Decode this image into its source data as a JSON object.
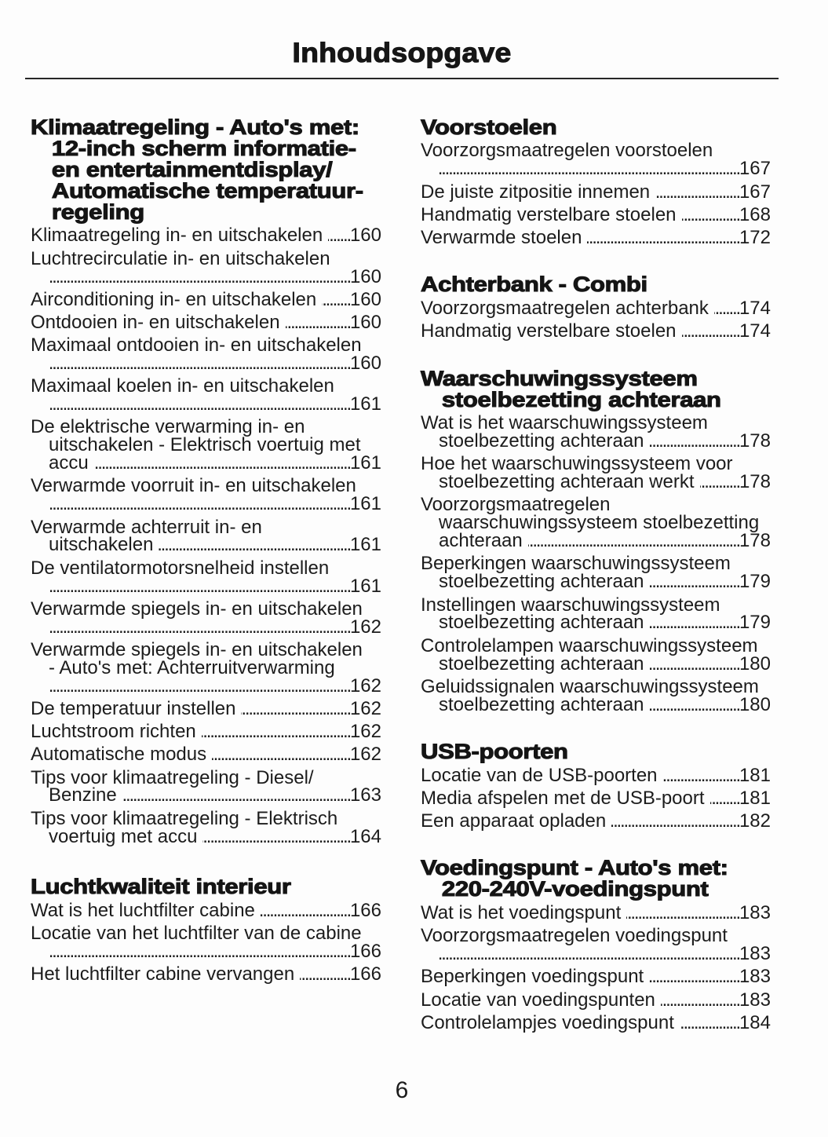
{
  "page": {
    "title": "Inhoudsopgave",
    "folio": "6"
  },
  "columns": {
    "left": {
      "blocks": [
        {
          "type": "heading",
          "lines": [
            "Klimaatregeling - Auto's met:",
            "12-inch scherm informatie-",
            "en entertainmentdisplay/",
            "Automatische temperatuur-",
            "regeling"
          ]
        },
        {
          "type": "entry",
          "lines": [
            "Klimaatregeling in- en uitschakelen"
          ],
          "page": "160",
          "dots_alone": false
        },
        {
          "type": "entry",
          "lines": [
            "Luchtrecirculatie in- en uitschakelen"
          ],
          "page": "160",
          "dots_alone": true
        },
        {
          "type": "entry",
          "lines": [
            "Airconditioning in- en uitschakelen"
          ],
          "page": "160",
          "dots_alone": false
        },
        {
          "type": "entry",
          "lines": [
            "Ontdooien in- en uitschakelen"
          ],
          "page": "160",
          "dots_alone": false
        },
        {
          "type": "entry",
          "lines": [
            "Maximaal ontdooien in- en uitschakelen"
          ],
          "page": "160",
          "dots_alone": true
        },
        {
          "type": "entry",
          "lines": [
            "Maximaal koelen in- en uitschakelen"
          ],
          "page": "161",
          "dots_alone": true
        },
        {
          "type": "entry",
          "lines": [
            "De elektrische verwarming in- en",
            "uitschakelen - Elektrisch voertuig met",
            "accu"
          ],
          "page": "161",
          "dots_alone": false
        },
        {
          "type": "entry",
          "lines": [
            "Verwarmde voorruit in- en uitschakelen"
          ],
          "page": "161",
          "dots_alone": true
        },
        {
          "type": "entry",
          "lines": [
            "Verwarmde achterruit in- en",
            "uitschakelen"
          ],
          "page": "161",
          "dots_alone": false
        },
        {
          "type": "entry",
          "lines": [
            "De ventilatormotorsnelheid instellen"
          ],
          "page": "161",
          "dots_alone": true
        },
        {
          "type": "entry",
          "lines": [
            "Verwarmde spiegels in- en uitschakelen"
          ],
          "page": "162",
          "dots_alone": true
        },
        {
          "type": "entry",
          "lines": [
            "Verwarmde spiegels in- en uitschakelen",
            "- Auto's met: Achterruitverwarming"
          ],
          "page": "162",
          "dots_alone": true
        },
        {
          "type": "entry",
          "lines": [
            "De temperatuur instellen"
          ],
          "page": "162",
          "dots_alone": false
        },
        {
          "type": "entry",
          "lines": [
            "Luchtstroom richten"
          ],
          "page": "162",
          "dots_alone": false
        },
        {
          "type": "entry",
          "lines": [
            "Automatische modus"
          ],
          "page": "162",
          "dots_alone": false
        },
        {
          "type": "entry",
          "lines": [
            "Tips voor klimaatregeling - Diesel/",
            "Benzine"
          ],
          "page": "163",
          "dots_alone": false
        },
        {
          "type": "entry",
          "lines": [
            "Tips voor klimaatregeling - Elektrisch",
            "voertuig met accu"
          ],
          "page": "164",
          "dots_alone": false
        },
        {
          "type": "heading",
          "lines": [
            "Luchtkwaliteit interieur"
          ]
        },
        {
          "type": "entry",
          "lines": [
            "Wat is het luchtfilter cabine"
          ],
          "page": "166",
          "dots_alone": false
        },
        {
          "type": "entry",
          "lines": [
            "Locatie van het luchtfilter van de cabine"
          ],
          "page": "166",
          "dots_alone": true
        },
        {
          "type": "entry",
          "lines": [
            "Het luchtfilter cabine vervangen"
          ],
          "page": "166",
          "dots_alone": false
        }
      ]
    },
    "right": {
      "blocks": [
        {
          "type": "heading",
          "lines": [
            "Voorstoelen"
          ]
        },
        {
          "type": "entry",
          "lines": [
            "Voorzorgsmaatregelen voorstoelen"
          ],
          "page": "167",
          "dots_alone": true
        },
        {
          "type": "entry",
          "lines": [
            "De juiste zitpositie innemen"
          ],
          "page": "167",
          "dots_alone": false
        },
        {
          "type": "entry",
          "lines": [
            "Handmatig verstelbare stoelen"
          ],
          "page": "168",
          "dots_alone": false
        },
        {
          "type": "entry",
          "lines": [
            "Verwarmde stoelen"
          ],
          "page": "172",
          "dots_alone": false
        },
        {
          "type": "heading",
          "lines": [
            "Achterbank - Combi"
          ]
        },
        {
          "type": "entry",
          "lines": [
            "Voorzorgsmaatregelen achterbank"
          ],
          "page": "174",
          "dots_alone": false
        },
        {
          "type": "entry",
          "lines": [
            "Handmatig verstelbare stoelen"
          ],
          "page": "174",
          "dots_alone": false
        },
        {
          "type": "heading",
          "lines": [
            "Waarschuwingssysteem",
            "stoelbezetting achteraan"
          ]
        },
        {
          "type": "entry",
          "lines": [
            "Wat is het waarschuwingssysteem",
            "stoelbezetting achteraan"
          ],
          "page": "178",
          "dots_alone": false
        },
        {
          "type": "entry",
          "lines": [
            "Hoe het waarschuwingssysteem voor",
            "stoelbezetting achteraan werkt"
          ],
          "page": "178",
          "dots_alone": false
        },
        {
          "type": "entry",
          "lines": [
            "Voorzorgsmaatregelen",
            "waarschuwingssysteem stoelbezetting",
            "achteraan"
          ],
          "page": "178",
          "dots_alone": false
        },
        {
          "type": "entry",
          "lines": [
            "Beperkingen waarschuwingssysteem",
            "stoelbezetting achteraan"
          ],
          "page": "179",
          "dots_alone": false
        },
        {
          "type": "entry",
          "lines": [
            "Instellingen waarschuwingssysteem",
            "stoelbezetting achteraan"
          ],
          "page": "179",
          "dots_alone": false
        },
        {
          "type": "entry",
          "lines": [
            "Controlelampen waarschuwingssysteem",
            "stoelbezetting achteraan"
          ],
          "page": "180",
          "dots_alone": false
        },
        {
          "type": "entry",
          "lines": [
            "Geluidssignalen waarschuwingssysteem",
            "stoelbezetting achteraan"
          ],
          "page": "180",
          "dots_alone": false
        },
        {
          "type": "heading",
          "lines": [
            "USB-poorten"
          ]
        },
        {
          "type": "entry",
          "lines": [
            "Locatie van de USB-poorten"
          ],
          "page": "181",
          "dots_alone": false
        },
        {
          "type": "entry",
          "lines": [
            "Media afspelen met de USB-poort"
          ],
          "page": "181",
          "dots_alone": false
        },
        {
          "type": "entry",
          "lines": [
            "Een apparaat opladen"
          ],
          "page": "182",
          "dots_alone": false
        },
        {
          "type": "heading",
          "lines": [
            "Voedingspunt - Auto's met:",
            "220-240V-voedingspunt"
          ]
        },
        {
          "type": "entry",
          "lines": [
            "Wat is het voedingspunt"
          ],
          "page": "183",
          "dots_alone": false
        },
        {
          "type": "entry",
          "lines": [
            "Voorzorgsmaatregelen voedingspunt"
          ],
          "page": "183",
          "dots_alone": true
        },
        {
          "type": "entry",
          "lines": [
            "Beperkingen voedingspunt"
          ],
          "page": "183",
          "dots_alone": false
        },
        {
          "type": "entry",
          "lines": [
            "Locatie van voedingspunten"
          ],
          "page": "183",
          "dots_alone": false
        },
        {
          "type": "entry",
          "lines": [
            "Controlelampjes voedingspunt"
          ],
          "page": "184",
          "dots_alone": false
        }
      ]
    }
  }
}
